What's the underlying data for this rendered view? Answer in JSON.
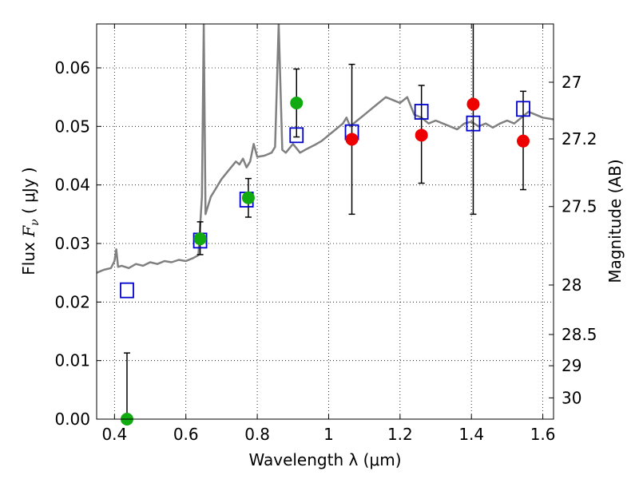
{
  "chart_data": {
    "type": "scatter",
    "xlabel": "Wavelength  λ (μm)",
    "ylabel": "Flux  F_ν  ( μJy )",
    "ylabel_parts": {
      "pre": "Flux  ",
      "sym": "F",
      "sub": "ν",
      "post": "  ( μJy )"
    },
    "y2label": "Magnitude (AB)",
    "xlim": [
      0.35,
      1.63
    ],
    "ylim": [
      0.0,
      0.0675
    ],
    "grid": true,
    "x_ticks": [
      {
        "value": 0.4,
        "label": "0.4"
      },
      {
        "value": 0.6,
        "label": "0.6"
      },
      {
        "value": 0.8,
        "label": "0.8"
      },
      {
        "value": 1.0,
        "label": "1"
      },
      {
        "value": 1.2,
        "label": "1.2"
      },
      {
        "value": 1.4,
        "label": "1.4"
      },
      {
        "value": 1.6,
        "label": "1.6"
      }
    ],
    "y_ticks": [
      {
        "value": 0.0,
        "label": "0.00"
      },
      {
        "value": 0.01,
        "label": "0.01"
      },
      {
        "value": 0.02,
        "label": "0.02"
      },
      {
        "value": 0.03,
        "label": "0.03"
      },
      {
        "value": 0.04,
        "label": "0.04"
      },
      {
        "value": 0.05,
        "label": "0.05"
      },
      {
        "value": 0.06,
        "label": "0.06"
      }
    ],
    "y2_ticks": [
      {
        "value": 27,
        "label": "27"
      },
      {
        "value": 27.2,
        "label": "27.2"
      },
      {
        "value": 27.5,
        "label": "27.5"
      },
      {
        "value": 28,
        "label": "28"
      },
      {
        "value": 28.5,
        "label": "28.5"
      },
      {
        "value": 29,
        "label": "29"
      },
      {
        "value": 30,
        "label": "30"
      }
    ],
    "colors": {
      "model": "#808080",
      "model_points": "#0000cc",
      "green": "#11aa11",
      "red": "#ee0000",
      "errorbar": "#000000"
    },
    "series": [
      {
        "kind": "model_spectrum",
        "x": [
          0.35,
          0.37,
          0.39,
          0.4,
          0.405,
          0.41,
          0.42,
          0.44,
          0.46,
          0.48,
          0.5,
          0.52,
          0.54,
          0.56,
          0.58,
          0.6,
          0.62,
          0.635,
          0.64,
          0.645,
          0.65,
          0.655,
          0.66,
          0.67,
          0.68,
          0.69,
          0.7,
          0.72,
          0.74,
          0.75,
          0.76,
          0.77,
          0.78,
          0.79,
          0.8,
          0.82,
          0.84,
          0.85,
          0.86,
          0.87,
          0.88,
          0.9,
          0.92,
          0.94,
          0.96,
          0.98,
          1.0,
          1.02,
          1.04,
          1.05,
          1.06,
          1.08,
          1.1,
          1.12,
          1.14,
          1.16,
          1.18,
          1.2,
          1.22,
          1.24,
          1.26,
          1.28,
          1.3,
          1.32,
          1.34,
          1.36,
          1.38,
          1.4,
          1.42,
          1.44,
          1.46,
          1.48,
          1.5,
          1.52,
          1.54,
          1.56,
          1.58,
          1.6,
          1.63
        ],
        "y": [
          0.025,
          0.0255,
          0.0258,
          0.027,
          0.029,
          0.026,
          0.0262,
          0.0258,
          0.0265,
          0.0262,
          0.0268,
          0.0265,
          0.027,
          0.0268,
          0.0272,
          0.027,
          0.0275,
          0.028,
          0.033,
          0.038,
          0.0675,
          0.035,
          0.036,
          0.038,
          0.039,
          0.04,
          0.041,
          0.0425,
          0.044,
          0.0435,
          0.0445,
          0.043,
          0.044,
          0.047,
          0.0448,
          0.045,
          0.0455,
          0.0465,
          0.0675,
          0.046,
          0.0455,
          0.047,
          0.0455,
          0.0462,
          0.0468,
          0.0475,
          0.0485,
          0.0495,
          0.0505,
          0.0515,
          0.05,
          0.051,
          0.052,
          0.053,
          0.054,
          0.055,
          0.0545,
          0.054,
          0.055,
          0.052,
          0.0515,
          0.0505,
          0.051,
          0.0505,
          0.05,
          0.0495,
          0.0505,
          0.0508,
          0.05,
          0.0505,
          0.0498,
          0.0505,
          0.051,
          0.0505,
          0.0515,
          0.0525,
          0.052,
          0.0515,
          0.0512
        ]
      },
      {
        "kind": "model_points",
        "x": [
          0.435,
          0.64,
          0.77,
          0.91,
          1.065,
          1.26,
          1.405,
          1.545
        ],
        "y": [
          0.022,
          0.0305,
          0.0375,
          0.0485,
          0.049,
          0.0525,
          0.0505,
          0.053
        ]
      },
      {
        "kind": "observed_green",
        "x": [
          0.435,
          0.64,
          0.775,
          0.91
        ],
        "y": [
          0.0,
          0.0308,
          0.0378,
          0.054
        ],
        "err_low": [
          0.0,
          0.0027,
          0.0033,
          0.0058
        ],
        "err_high": [
          0.0113,
          0.0029,
          0.0033,
          0.0058
        ]
      },
      {
        "kind": "observed_red",
        "x": [
          1.065,
          1.26,
          1.405,
          1.545
        ],
        "y": [
          0.0478,
          0.0485,
          0.0538,
          0.0475
        ],
        "err_low": [
          0.0128,
          0.0082,
          0.0188,
          0.0083
        ],
        "err_high": [
          0.0128,
          0.0085,
          0.02,
          0.0085
        ]
      }
    ]
  }
}
